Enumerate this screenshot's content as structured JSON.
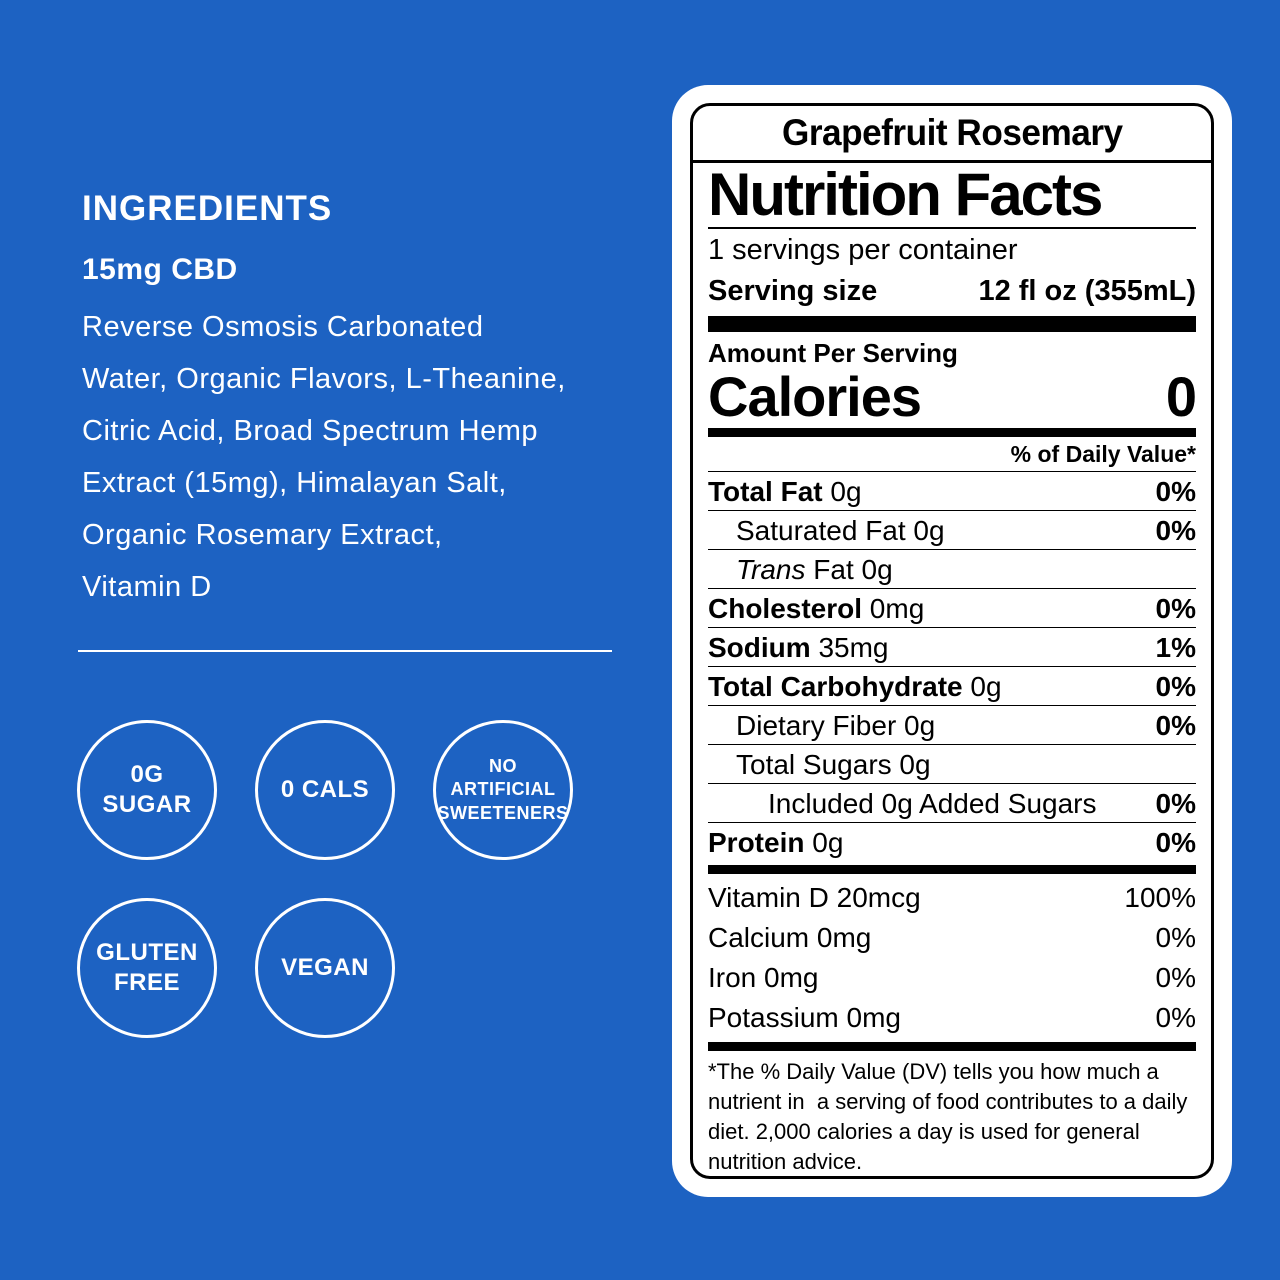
{
  "page": {
    "background_color": "#1d62c2",
    "text_color": "#ffffff",
    "label_bg_color": "#ffffff",
    "label_ink_color": "#000000"
  },
  "left_panel": {
    "ingredients_title": "INGREDIENTS",
    "cbd_line": "15mg CBD",
    "ingredients_text": "Reverse Osmosis Carbonated\nWater, Organic Flavors, L-Theanine,\nCitric Acid, Broad Spectrum Hemp\nExtract (15mg), Himalayan Salt,\nOrganic Rosemary Extract,\nVitamin D",
    "badges_row1": [
      {
        "text": "0G\nSUGAR"
      },
      {
        "text": "0 CALS"
      },
      {
        "text": "NO\nARTIFICIAL\nSWEETENERS"
      }
    ],
    "badges_row2": [
      {
        "text": "GLUTEN\nFREE"
      },
      {
        "text": "VEGAN"
      }
    ]
  },
  "label": {
    "flavor": "Grapefruit Rosemary",
    "title": "Nutrition Facts",
    "servings_per_container": "1 servings per container",
    "serving_size_label": "Serving size",
    "serving_size_value": "12 fl oz (355mL)",
    "amount_per_serving": "Amount Per Serving",
    "calories_label": "Calories",
    "calories_value": "0",
    "daily_value_header": "% of Daily Value*",
    "rows": [
      {
        "b": "Total Fat",
        "r": " 0g",
        "dv": "0%"
      },
      {
        "r": "Saturated Fat 0g",
        "dv": "0%"
      },
      {
        "i": "Trans",
        "r": " Fat 0g",
        "dv": ""
      },
      {
        "b": "Cholesterol",
        "r": " 0mg",
        "dv": "0%"
      },
      {
        "b": "Sodium",
        "r": " 35mg",
        "dv": "1%"
      },
      {
        "b": "Total Carbohydrate",
        "r": " 0g",
        "dv": "0%"
      },
      {
        "r": "Dietary Fiber 0g",
        "dv": "0%"
      },
      {
        "r": "Total Sugars 0g",
        "dv": ""
      },
      {
        "r": "Included 0g Added Sugars",
        "dv": "0%"
      },
      {
        "b": "Protein",
        "r": " 0g",
        "dv": "0%"
      }
    ],
    "vitamins": [
      {
        "name": "Vitamin D 20mcg",
        "dv": "100%"
      },
      {
        "name": "Calcium 0mg",
        "dv": "0%"
      },
      {
        "name": "Iron 0mg",
        "dv": "0%"
      },
      {
        "name": "Potassium 0mg",
        "dv": "0%"
      }
    ],
    "footnote": "*The % Daily Value (DV) tells you how much a nutrient in  a serving of food contributes to a daily diet. 2,000 calories a day is used for general nutrition advice."
  }
}
